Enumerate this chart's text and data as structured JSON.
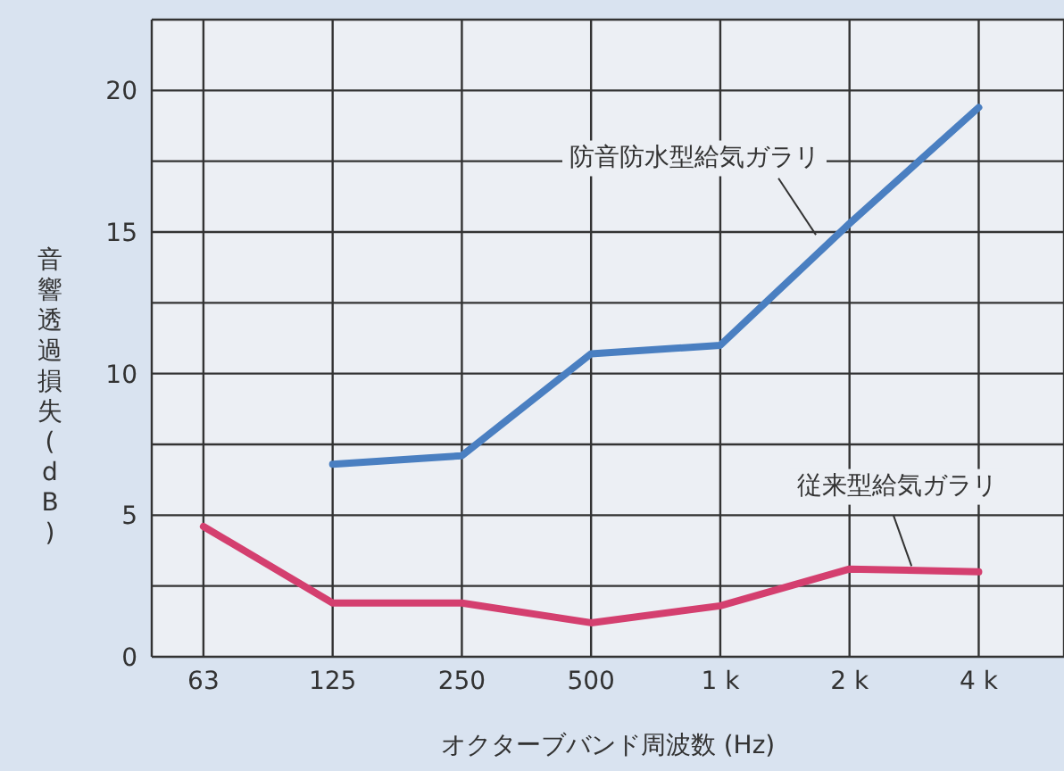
{
  "chart_data": {
    "type": "line",
    "xlabel": "オクターブバンド周波数 (Hz)",
    "ylabel": "音響透過損失(dB)",
    "categories": [
      "63",
      "125",
      "250",
      "500",
      "1 k",
      "2 k",
      "4 k"
    ],
    "series": [
      {
        "name": "防音防水型給気ガラリ",
        "color": "#4a7fc1",
        "values": [
          null,
          6.8,
          7.1,
          10.7,
          11.0,
          15.3,
          19.4
        ]
      },
      {
        "name": "従来型給気ガラリ",
        "color": "#d43f6f",
        "values": [
          4.6,
          1.9,
          1.9,
          1.2,
          1.8,
          3.1,
          3.0
        ]
      }
    ],
    "ylim": [
      0,
      22.5
    ],
    "yticks": [
      0,
      {
        "value": 2.5,
        "label": null
      },
      5,
      {
        "value": 7.5,
        "label": null
      },
      10,
      {
        "value": 12.5,
        "label": null
      },
      15,
      {
        "value": 17.5,
        "label": null
      },
      20
    ],
    "grid": true,
    "marker": "none",
    "line_style": "solid",
    "legend": false
  }
}
